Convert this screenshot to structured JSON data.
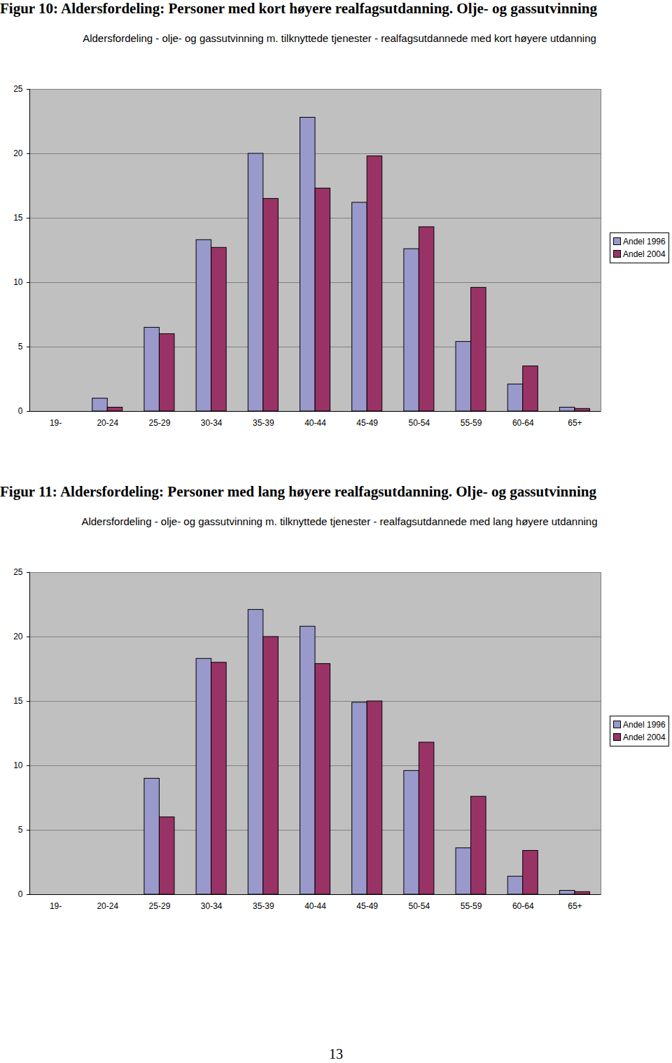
{
  "page_number": "13",
  "chart_data": [
    {
      "type": "bar",
      "caption": "Figur 10: Aldersfordeling: Personer med kort høyere realfagsutdanning. Olje- og gassutvinning",
      "title": "Aldersfordeling - olje- og gassutvinning m. tilknyttede tjenester - realfagsutdannede med kort høyere utdanning",
      "categories": [
        "19-",
        "20-24",
        "25-29",
        "30-34",
        "35-39",
        "40-44",
        "45-49",
        "50-54",
        "55-59",
        "60-64",
        "65+"
      ],
      "series": [
        {
          "name": "Andel 1996",
          "color": "#9999cc",
          "values": [
            0,
            1.0,
            6.5,
            13.3,
            20.0,
            22.8,
            16.2,
            12.6,
            5.4,
            2.1,
            0.3
          ]
        },
        {
          "name": "Andel 2004",
          "color": "#993366",
          "values": [
            0,
            0.3,
            6.0,
            12.7,
            16.5,
            17.3,
            19.8,
            14.3,
            9.6,
            3.5,
            0.2
          ]
        }
      ],
      "ylim": [
        0,
        25
      ],
      "yticks": [
        0,
        5,
        10,
        15,
        20,
        25
      ],
      "grid": true,
      "legend": "right"
    },
    {
      "type": "bar",
      "caption": "Figur 11: Aldersfordeling: Personer med lang høyere realfagsutdanning. Olje- og gassutvinning",
      "title": "Aldersfordeling - olje- og gassutvinning m. tilknyttede tjenester - realfagsutdannede med lang høyere utdanning",
      "categories": [
        "19-",
        "20-24",
        "25-29",
        "30-34",
        "35-39",
        "40-44",
        "45-49",
        "50-54",
        "55-59",
        "60-64",
        "65+"
      ],
      "series": [
        {
          "name": "Andel 1996",
          "color": "#9999cc",
          "values": [
            0,
            0,
            9.0,
            18.3,
            22.1,
            20.8,
            14.9,
            9.6,
            3.6,
            1.4,
            0.3
          ]
        },
        {
          "name": "Andel 2004",
          "color": "#993366",
          "values": [
            0,
            0,
            6.0,
            18.0,
            20.0,
            17.9,
            15.0,
            11.8,
            7.6,
            3.4,
            0.2
          ]
        }
      ],
      "ylim": [
        0,
        25
      ],
      "yticks": [
        0,
        5,
        10,
        15,
        20,
        25
      ],
      "grid": true,
      "legend": "right"
    }
  ]
}
